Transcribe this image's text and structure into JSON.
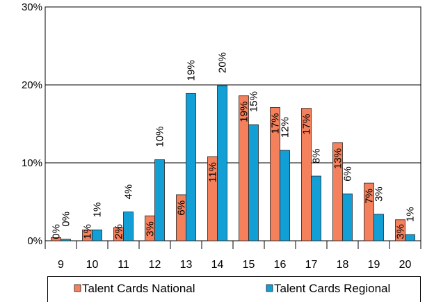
{
  "chart_data": {
    "type": "bar",
    "categories": [
      "9",
      "10",
      "11",
      "12",
      "13",
      "14",
      "15",
      "16",
      "17",
      "18",
      "19",
      "20"
    ],
    "series": [
      {
        "name": "Talent Cards National",
        "color": "#f4805c",
        "values": [
          0.4,
          1.4,
          1.7,
          3.2,
          5.9,
          10.8,
          18.6,
          17.1,
          17.0,
          12.6,
          7.4,
          2.7
        ],
        "value_labels": [
          "0%",
          "1%",
          "2%",
          "3%",
          "6%",
          "11%",
          "19%",
          "17%",
          "17%",
          "13%",
          "7%",
          "3%"
        ]
      },
      {
        "name": "Talent Cards Regional",
        "color": "#119fd6",
        "values": [
          0.2,
          1.4,
          3.7,
          10.4,
          18.9,
          19.9,
          14.9,
          11.6,
          8.3,
          6.0,
          3.4,
          0.8
        ],
        "value_labels": [
          "0%",
          "1%",
          "4%",
          "10%",
          "19%",
          "20%",
          "15%",
          "12%",
          "8%",
          "6%",
          "3%",
          "1%"
        ]
      }
    ],
    "ylim": [
      0,
      30
    ],
    "yticks": [
      {
        "value": 0,
        "label": "0%"
      },
      {
        "value": 10,
        "label": "10%"
      },
      {
        "value": 20,
        "label": "20%"
      },
      {
        "value": 30,
        "label": "30%"
      }
    ],
    "grid": true,
    "legend": "bottom"
  }
}
